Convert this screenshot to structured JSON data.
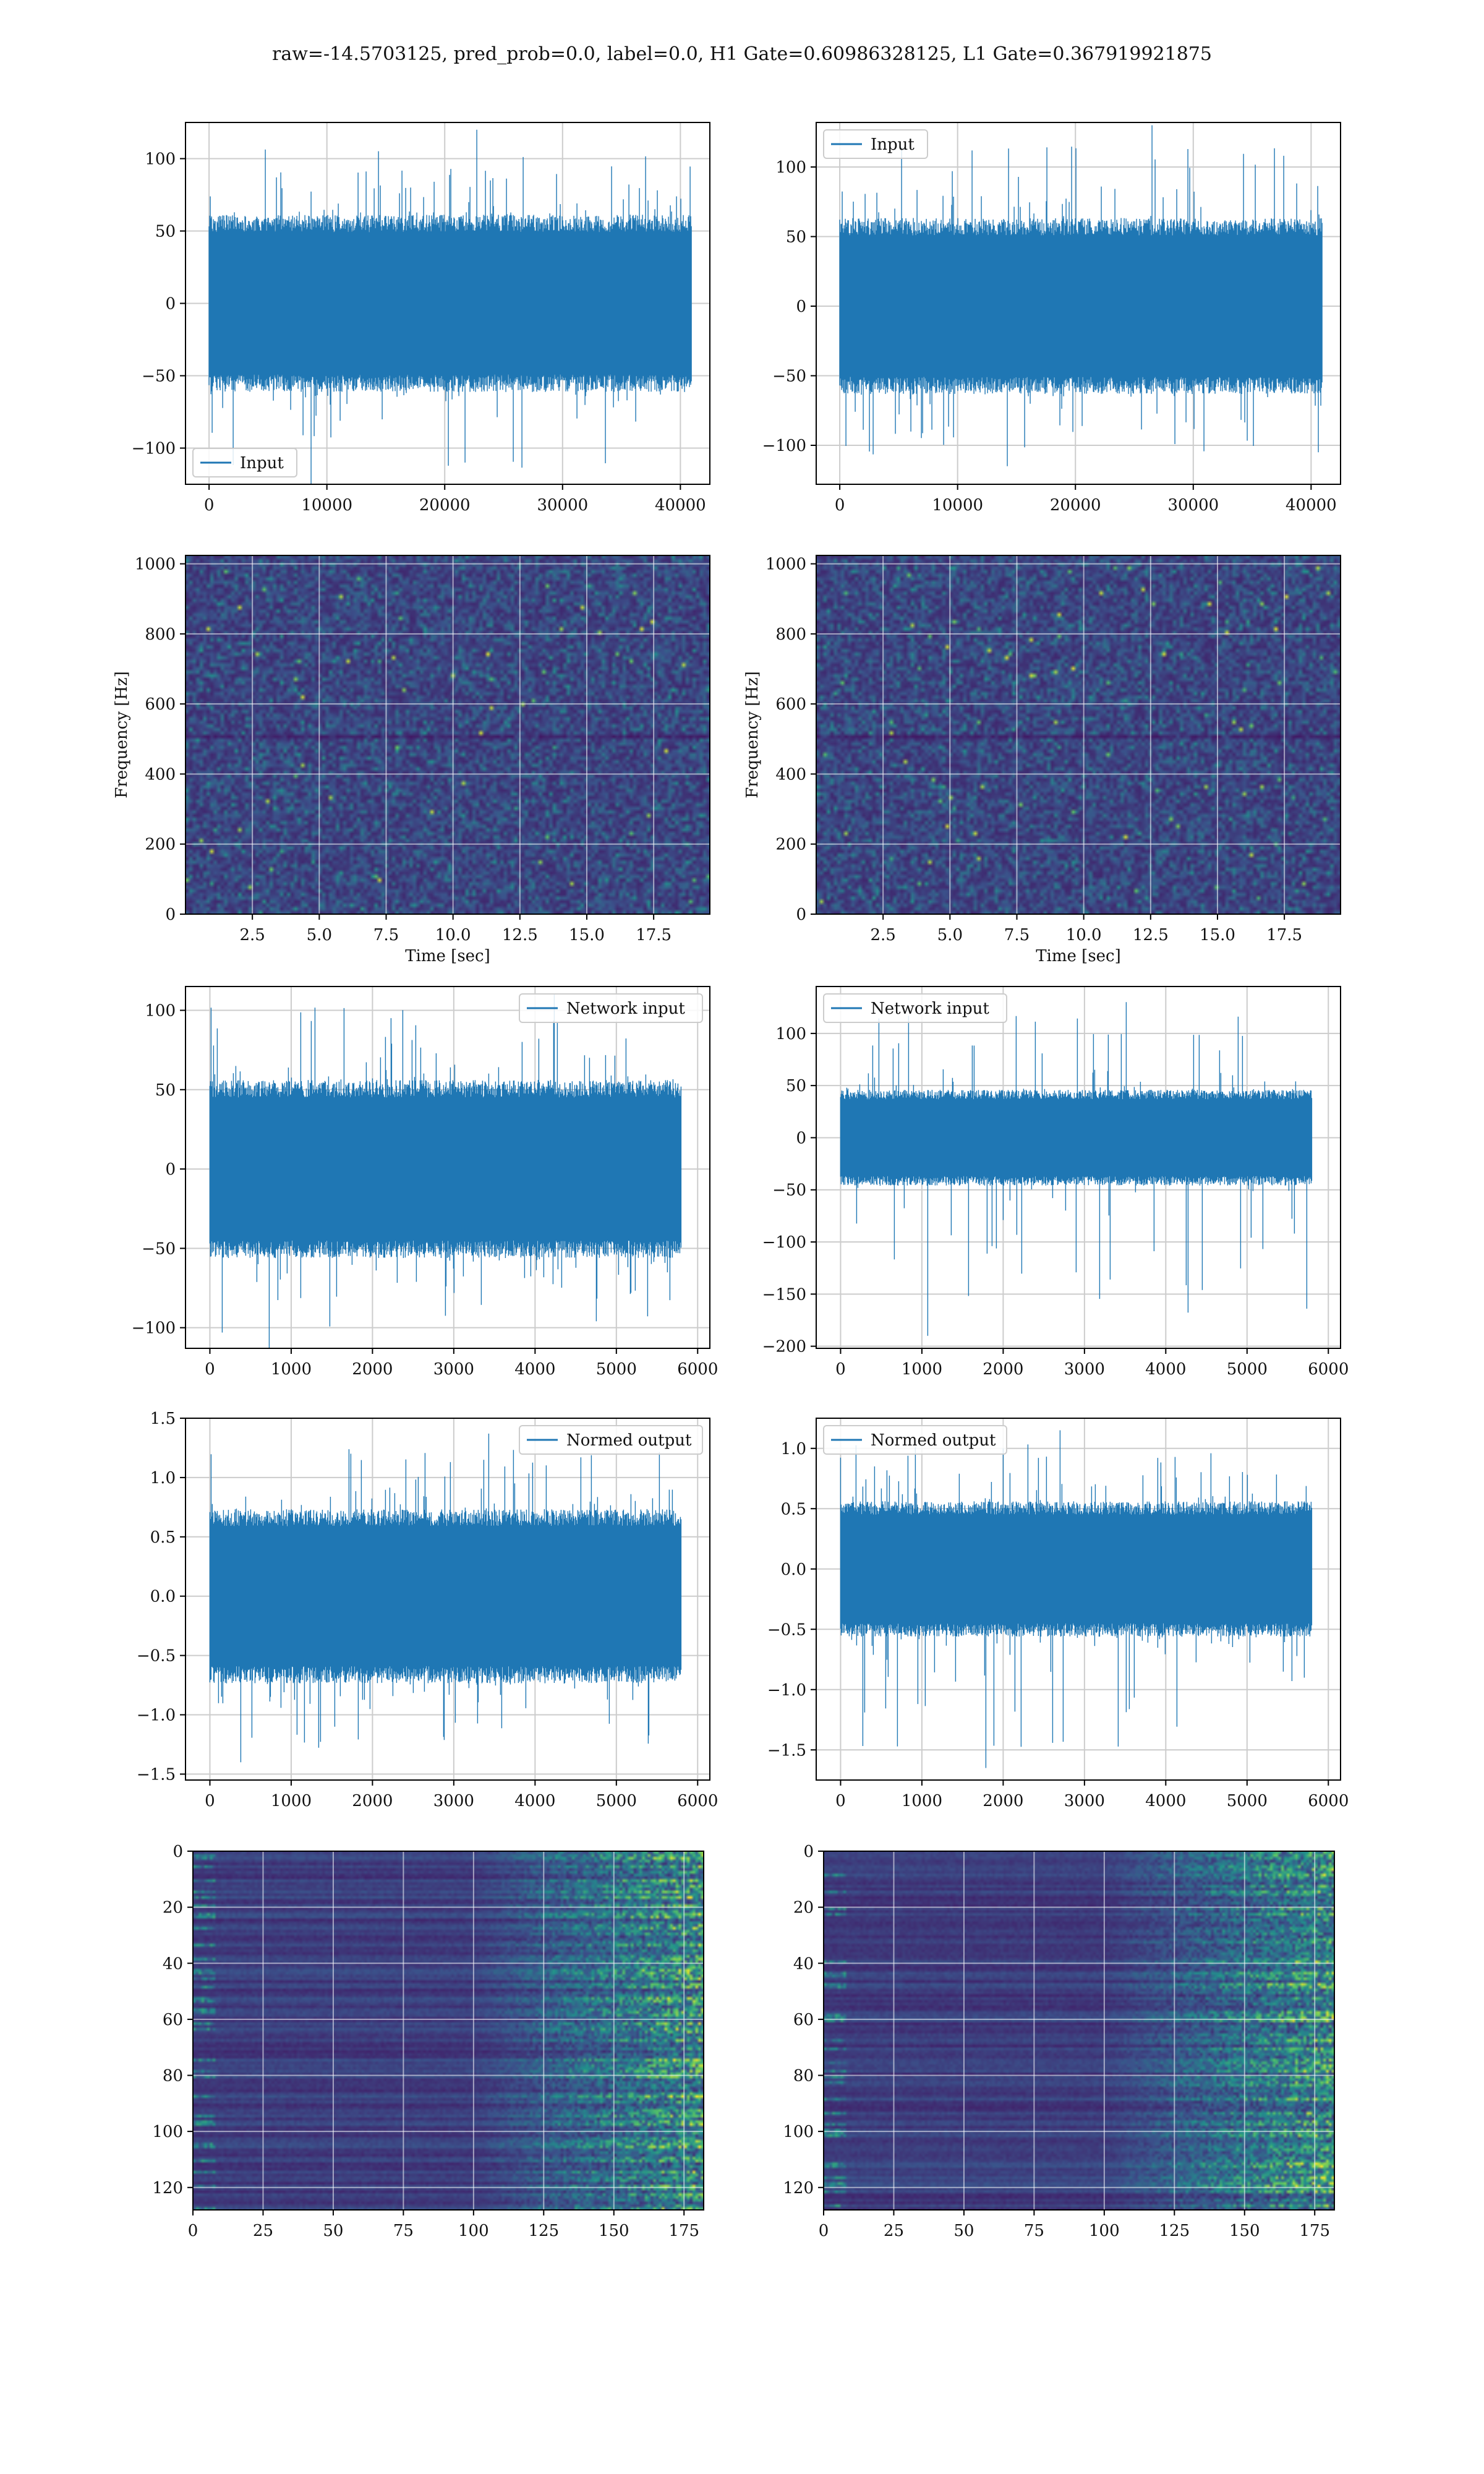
{
  "figure": {
    "suptitle": "raw=-14.5703125, pred_prob=0.0, label=0.0, H1 Gate=0.60986328125, L1 Gate=0.367919921875"
  },
  "colors": {
    "series": "#1f77b4",
    "grid": "#cccccc",
    "spectrogram_bg": "#3b0f70",
    "viridis": [
      "#440154",
      "#3b528b",
      "#21918c",
      "#5ec962",
      "#fde725"
    ]
  },
  "chart_data": [
    {
      "id": "h1-input",
      "type": "line",
      "legend": [
        "Input"
      ],
      "legend_loc": "lower-left",
      "xlim": [
        -2000,
        42500
      ],
      "ylim": [
        -125,
        125
      ],
      "xticks": [
        0,
        10000,
        20000,
        30000,
        40000
      ],
      "yticks": [
        -100,
        -50,
        0,
        50,
        100
      ],
      "signal": {
        "n": 40960,
        "body_amp": 60,
        "peak_max": 120,
        "peak_min": -125
      },
      "grid": true
    },
    {
      "id": "l1-input",
      "type": "line",
      "legend": [
        "Input"
      ],
      "legend_loc": "upper-left",
      "xlim": [
        -2000,
        42500
      ],
      "ylim": [
        -128,
        132
      ],
      "xticks": [
        0,
        10000,
        20000,
        30000,
        40000
      ],
      "yticks": [
        -100,
        -50,
        0,
        50,
        100
      ],
      "signal": {
        "n": 40960,
        "body_amp": 62,
        "peak_max": 130,
        "peak_min": -115
      },
      "grid": true
    },
    {
      "id": "h1-spectrogram",
      "type": "heatmap",
      "xlabel": "Time [sec]",
      "ylabel": "Frequency [Hz]",
      "xlim": [
        0,
        19.6
      ],
      "ylim": [
        0,
        1024
      ],
      "xticks": [
        2.5,
        5.0,
        7.5,
        10.0,
        12.5,
        15.0,
        17.5
      ],
      "xticklabels": [
        "2.5",
        "5.0",
        "7.5",
        "10.0",
        "12.5",
        "15.0",
        "17.5"
      ],
      "yticks": [
        0,
        200,
        400,
        600,
        800,
        1000
      ],
      "colormap": "viridis",
      "grid": true
    },
    {
      "id": "l1-spectrogram",
      "type": "heatmap",
      "xlabel": "Time [sec]",
      "ylabel": "Frequency [Hz]",
      "xlim": [
        0,
        19.6
      ],
      "ylim": [
        0,
        1024
      ],
      "xticks": [
        2.5,
        5.0,
        7.5,
        10.0,
        12.5,
        15.0,
        17.5
      ],
      "xticklabels": [
        "2.5",
        "5.0",
        "7.5",
        "10.0",
        "12.5",
        "15.0",
        "17.5"
      ],
      "yticks": [
        0,
        200,
        400,
        600,
        800,
        1000
      ],
      "colormap": "viridis",
      "grid": true
    },
    {
      "id": "h1-network-input",
      "type": "line",
      "legend": [
        "Network input"
      ],
      "legend_loc": "upper-right",
      "xlim": [
        -300,
        6150
      ],
      "ylim": [
        -113,
        115
      ],
      "xticks": [
        0,
        1000,
        2000,
        3000,
        4000,
        5000,
        6000
      ],
      "yticks": [
        -100,
        -50,
        0,
        50,
        100
      ],
      "signal": {
        "n": 5800,
        "body_amp": 55,
        "peak_max": 110,
        "peak_min": -113
      },
      "grid": true
    },
    {
      "id": "l1-network-input",
      "type": "line",
      "legend": [
        "Network input"
      ],
      "legend_loc": "upper-left",
      "xlim": [
        -300,
        6150
      ],
      "ylim": [
        -202,
        145
      ],
      "xticks": [
        0,
        1000,
        2000,
        3000,
        4000,
        5000,
        6000
      ],
      "yticks": [
        -200,
        -150,
        -100,
        -50,
        0,
        50,
        100
      ],
      "signal": {
        "n": 5800,
        "body_amp": 45,
        "peak_max": 130,
        "peak_min": -190
      },
      "grid": true
    },
    {
      "id": "h1-normed-output",
      "type": "line",
      "legend": [
        "Normed output"
      ],
      "legend_loc": "upper-right",
      "xlim": [
        -300,
        6150
      ],
      "ylim": [
        -1.55,
        1.5
      ],
      "xticks": [
        0,
        1000,
        2000,
        3000,
        4000,
        5000,
        6000
      ],
      "yticks": [
        -1.5,
        -1.0,
        -0.5,
        0.0,
        0.5,
        1.0,
        1.5
      ],
      "yticklabels": [
        "−1.5",
        "−1.0",
        "−0.5",
        "0.0",
        "0.5",
        "1.0",
        "1.5"
      ],
      "signal": {
        "n": 5800,
        "body_amp": 0.72,
        "peak_max": 1.37,
        "peak_min": -1.4
      },
      "grid": true
    },
    {
      "id": "l1-normed-output",
      "type": "line",
      "legend": [
        "Normed output"
      ],
      "legend_loc": "upper-left",
      "xlim": [
        -300,
        6150
      ],
      "ylim": [
        -1.75,
        1.25
      ],
      "xticks": [
        0,
        1000,
        2000,
        3000,
        4000,
        5000,
        6000
      ],
      "yticks": [
        -1.5,
        -1.0,
        -0.5,
        0.0,
        0.5,
        1.0
      ],
      "yticklabels": [
        "−1.5",
        "−1.0",
        "−0.5",
        "0.0",
        "0.5",
        "1.0"
      ],
      "signal": {
        "n": 5800,
        "body_amp": 0.55,
        "peak_max": 1.15,
        "peak_min": -1.65
      },
      "grid": true
    },
    {
      "id": "h1-feature-map",
      "type": "heatmap",
      "xlim": [
        0,
        182
      ],
      "ylim": [
        128,
        0
      ],
      "xticks": [
        0,
        25,
        50,
        75,
        100,
        125,
        150,
        175
      ],
      "yticks": [
        0,
        20,
        40,
        60,
        80,
        100,
        120
      ],
      "colormap": "viridis",
      "grid": true
    },
    {
      "id": "l1-feature-map",
      "type": "heatmap",
      "xlim": [
        0,
        182
      ],
      "ylim": [
        128,
        0
      ],
      "xticks": [
        0,
        25,
        50,
        75,
        100,
        125,
        150,
        175
      ],
      "yticks": [
        0,
        20,
        40,
        60,
        80,
        100,
        120
      ],
      "colormap": "viridis",
      "grid": true
    }
  ]
}
